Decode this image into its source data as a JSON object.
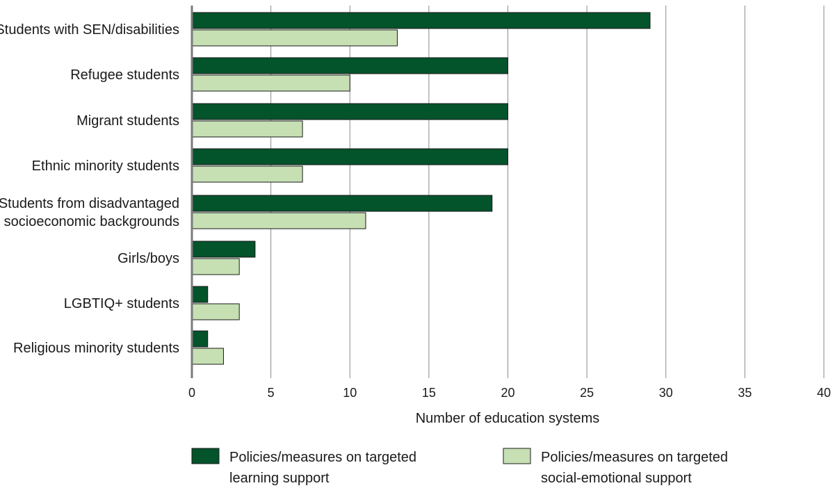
{
  "chart_data": {
    "type": "bar",
    "orientation": "horizontal",
    "categories": [
      [
        "Students with SEN/disabilities"
      ],
      [
        "Refugee students"
      ],
      [
        "Migrant students"
      ],
      [
        "Ethnic minority students"
      ],
      [
        "Students from disadvantaged",
        "socioeconomic backgrounds"
      ],
      [
        "Girls/boys"
      ],
      [
        "LGBTIQ+ students"
      ],
      [
        "Religious minority students"
      ]
    ],
    "series": [
      {
        "name": [
          "Policies/measures on targeted",
          "learning support"
        ],
        "color": "#03532b",
        "values": [
          29,
          20,
          20,
          20,
          19,
          4,
          1,
          1
        ]
      },
      {
        "name": [
          "Policies/measures on targeted",
          "social-emotional support"
        ],
        "color": "#c6e0b4",
        "values": [
          13,
          10,
          7,
          7,
          11,
          3,
          3,
          2
        ]
      }
    ],
    "xlabel": "Number of education systems",
    "ylabel": "",
    "xlim": [
      0,
      40
    ],
    "xticks": [
      0,
      5,
      10,
      15,
      20,
      25,
      30,
      35,
      40
    ],
    "grid": "vertical",
    "legend_position": "bottom"
  }
}
